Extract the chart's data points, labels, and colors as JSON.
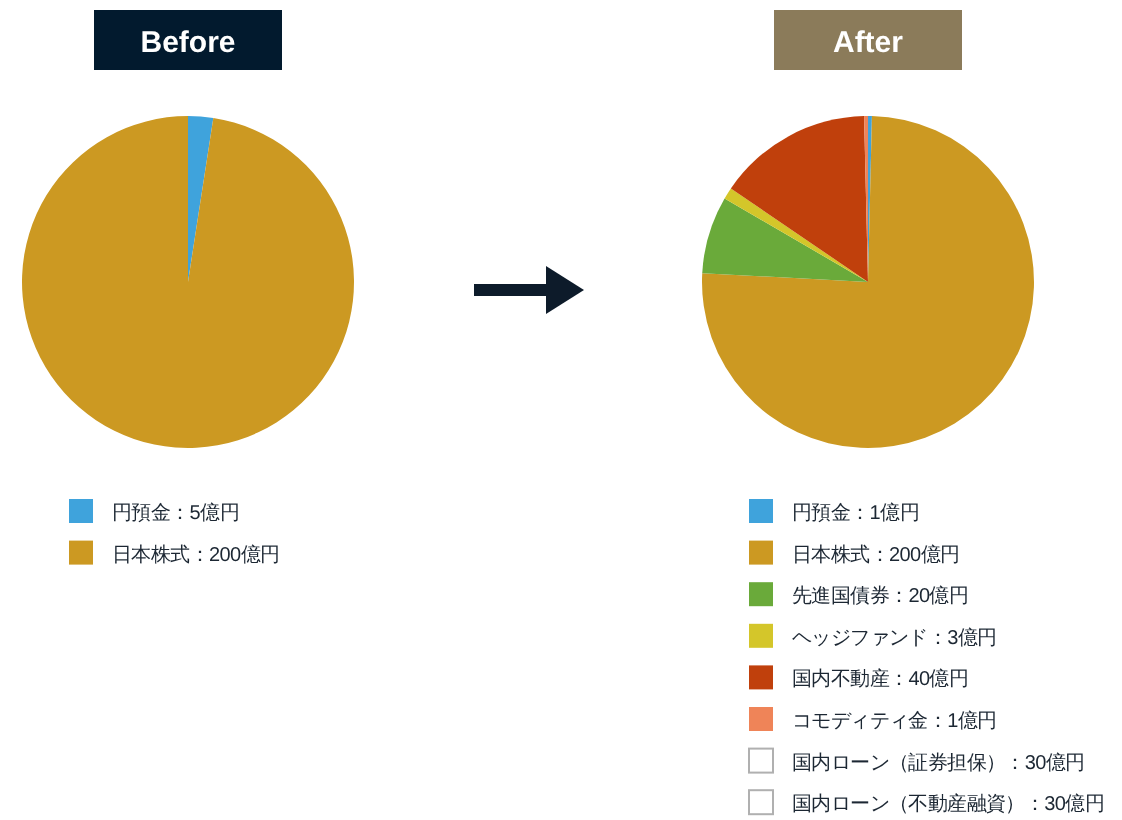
{
  "chart_data": [
    {
      "type": "pie",
      "title": "Before",
      "categories": [
        "円預金：5億円",
        "日本株式：200億円"
      ],
      "values": [
        5,
        200
      ],
      "colors": [
        "#3fa3dc",
        "#cc9922"
      ],
      "legend": "bottom"
    },
    {
      "type": "pie",
      "title": "After",
      "categories": [
        "円預金：1億円",
        "日本株式：200億円",
        "先進国債券：20億円",
        "ヘッジファンド：3億円",
        "国内不動産：40億円",
        "コモディティ金：1億円",
        "国内ローン（証券担保）：30億円",
        "国内ローン（不動産融資）：30億円"
      ],
      "values": [
        1,
        200,
        20,
        3,
        40,
        1,
        null,
        null
      ],
      "colors": [
        "#3fa3dc",
        "#cc9922",
        "#6aaa3a",
        "#d4c62a",
        "#c0400c",
        "#ef8458",
        "#ffffff",
        "#ffffff"
      ],
      "legend": "bottom"
    }
  ]
}
